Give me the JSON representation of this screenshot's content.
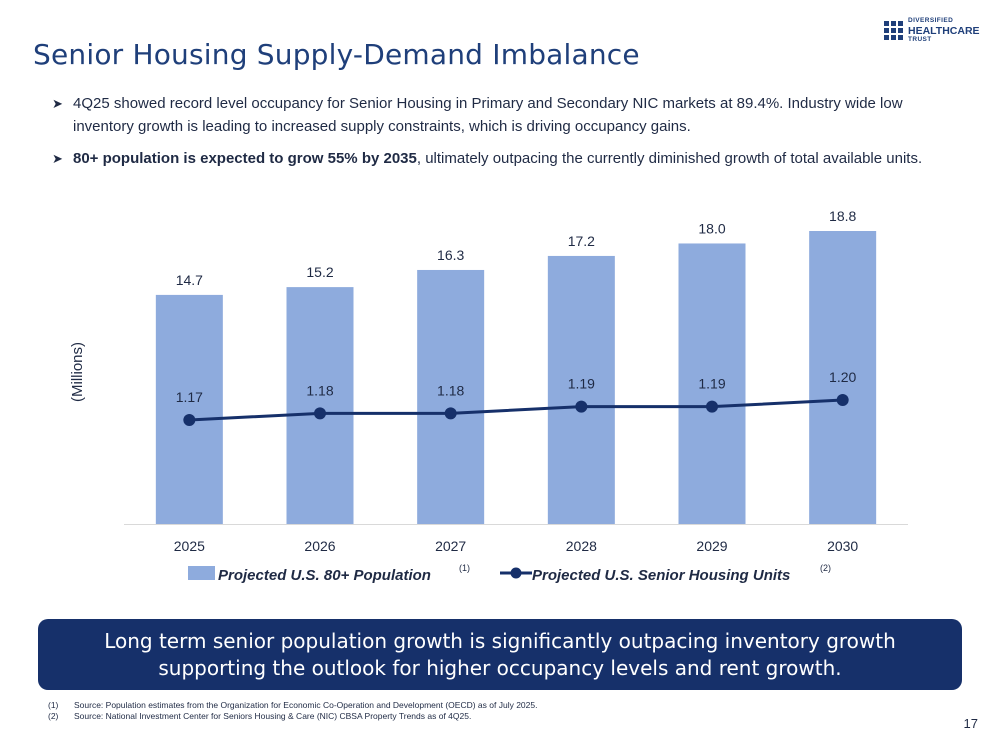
{
  "header": {
    "title": "Senior Housing Supply-Demand Imbalance",
    "logo": {
      "line1": "DIVERSIFIED",
      "line2": "HEALTHCARE",
      "line3": "TRUST"
    }
  },
  "bullets": [
    {
      "bold": "",
      "text": "4Q25 showed record level occupancy for Senior Housing in Primary and Secondary NIC markets at 89.4%. Industry wide low inventory growth is leading to increased supply constraints, which is driving occupancy gains."
    },
    {
      "bold": "80+ population is expected to grow 55% by 2035",
      "text": ", ultimately outpacing the currently diminished growth of total available units."
    }
  ],
  "chart_data": {
    "type": "bar",
    "categories": [
      "2025",
      "2026",
      "2027",
      "2028",
      "2029",
      "2030"
    ],
    "ylabel": "(Millions)",
    "series": [
      {
        "name": "Projected U.S. 80+ Population",
        "footnote": "(1)",
        "kind": "bar",
        "values": [
          14.7,
          15.2,
          16.3,
          17.2,
          18.0,
          18.8
        ],
        "labels": [
          "14.7",
          "15.2",
          "16.3",
          "17.2",
          "18.0",
          "18.8"
        ],
        "color": "#8eabdd"
      },
      {
        "name": "Projected U.S. Senior Housing Units",
        "footnote": "(2)",
        "kind": "line",
        "values": [
          1.17,
          1.18,
          1.18,
          1.19,
          1.19,
          1.2
        ],
        "labels": [
          "1.17",
          "1.18",
          "1.18",
          "1.19",
          "1.19",
          "1.20"
        ],
        "color": "#16306a"
      }
    ],
    "bar_ylim": [
      0,
      18.8
    ],
    "line_ylim": [
      0.9,
      1.3
    ]
  },
  "callout": {
    "text": "Long term senior population growth is significantly outpacing inventory growth supporting the outlook for higher occupancy levels and rent growth."
  },
  "footnotes": [
    {
      "num": "(1)",
      "text": "Source: Population estimates from the Organization for Economic Co-Operation and Development (OECD) as of July 2025."
    },
    {
      "num": "(2)",
      "text": "Source: National Investment Center for Seniors Housing & Care (NIC) CBSA Property Trends as of 4Q25."
    }
  ],
  "page": {
    "number": "17"
  }
}
